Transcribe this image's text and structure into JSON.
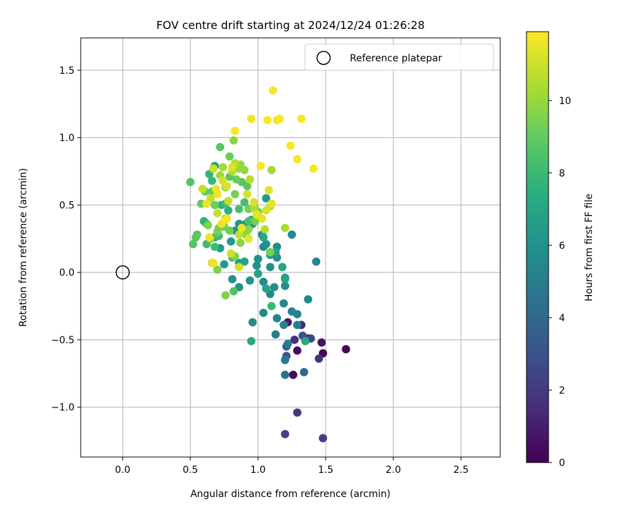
{
  "chart_data": {
    "type": "scatter",
    "title": "FOV centre drift starting at 2024/12/24 01:26:28",
    "xlabel": "Angular distance from reference (arcmin)",
    "ylabel": "Rotation from reference (arcmin)",
    "xlim": [
      -0.31,
      2.79
    ],
    "ylim": [
      -1.37,
      1.74
    ],
    "xticks": [
      0.0,
      0.5,
      1.0,
      1.5,
      2.0,
      2.5
    ],
    "xtick_labels": [
      "0.0",
      "0.5",
      "1.0",
      "1.5",
      "2.0",
      "2.5"
    ],
    "yticks": [
      -1.0,
      -0.5,
      0.0,
      0.5,
      1.0,
      1.5
    ],
    "ytick_labels": [
      "−1.0",
      "−0.5",
      "0.0",
      "0.5",
      "1.0",
      "1.5"
    ],
    "grid": true,
    "legend": {
      "placement": "upper right",
      "entries": [
        {
          "label": "Reference platepar",
          "marker": "open-circle"
        }
      ]
    },
    "reference_point": {
      "x": 0.0,
      "y": 0.0,
      "label": "Reference platepar"
    },
    "colorbar": {
      "label": "Hours from first FF file",
      "range": [
        0,
        11.9
      ],
      "ticks": [
        0,
        2,
        4,
        6,
        8,
        10
      ],
      "tick_labels": [
        "0",
        "2",
        "4",
        "6",
        "8",
        "10"
      ],
      "colormap": "viridis"
    },
    "points": [
      {
        "x": 1.26,
        "y": -0.76,
        "hours": 0.3
      },
      {
        "x": 1.29,
        "y": -0.58,
        "hours": 0.4
      },
      {
        "x": 1.48,
        "y": -0.6,
        "hours": 0.2
      },
      {
        "x": 1.65,
        "y": -0.57,
        "hours": 0.2
      },
      {
        "x": 1.47,
        "y": -0.52,
        "hours": 0.6
      },
      {
        "x": 1.37,
        "y": -0.49,
        "hours": 0.8
      },
      {
        "x": 1.22,
        "y": -0.37,
        "hours": 1.0
      },
      {
        "x": 1.32,
        "y": -0.39,
        "hours": 1.4
      },
      {
        "x": 1.27,
        "y": -0.5,
        "hours": 1.6
      },
      {
        "x": 1.45,
        "y": -0.64,
        "hours": 1.8
      },
      {
        "x": 1.29,
        "y": -1.04,
        "hours": 2.0
      },
      {
        "x": 1.48,
        "y": -1.23,
        "hours": 2.2
      },
      {
        "x": 1.2,
        "y": -1.2,
        "hours": 2.4
      },
      {
        "x": 1.39,
        "y": -0.49,
        "hours": 2.6
      },
      {
        "x": 1.33,
        "y": -0.47,
        "hours": 3.0
      },
      {
        "x": 1.21,
        "y": -0.62,
        "hours": 3.2
      },
      {
        "x": 1.21,
        "y": -0.55,
        "hours": 3.6
      },
      {
        "x": 1.34,
        "y": -0.74,
        "hours": 4.0
      },
      {
        "x": 1.2,
        "y": -0.76,
        "hours": 4.4
      },
      {
        "x": 1.2,
        "y": -0.65,
        "hours": 4.8
      },
      {
        "x": 1.22,
        "y": -0.53,
        "hours": 5.0
      },
      {
        "x": 1.13,
        "y": -0.46,
        "hours": 5.0
      },
      {
        "x": 1.19,
        "y": -0.39,
        "hours": 5.2
      },
      {
        "x": 1.29,
        "y": -0.39,
        "hours": 5.2
      },
      {
        "x": 1.25,
        "y": -0.29,
        "hours": 5.4
      },
      {
        "x": 1.29,
        "y": -0.31,
        "hours": 5.4
      },
      {
        "x": 1.14,
        "y": -0.34,
        "hours": 5.4
      },
      {
        "x": 1.19,
        "y": -0.23,
        "hours": 5.6
      },
      {
        "x": 1.04,
        "y": -0.3,
        "hours": 5.6
      },
      {
        "x": 0.96,
        "y": -0.37,
        "hours": 5.6
      },
      {
        "x": 1.37,
        "y": -0.2,
        "hours": 5.6
      },
      {
        "x": 1.43,
        "y": 0.08,
        "hours": 5.6
      },
      {
        "x": 1.25,
        "y": 0.28,
        "hours": 5.6
      },
      {
        "x": 1.09,
        "y": -0.16,
        "hours": 5.6
      },
      {
        "x": 1.12,
        "y": -0.11,
        "hours": 5.8
      },
      {
        "x": 1.2,
        "y": -0.1,
        "hours": 5.8
      },
      {
        "x": 1.2,
        "y": -0.04,
        "hours": 5.8
      },
      {
        "x": 1.04,
        "y": -0.07,
        "hours": 5.8
      },
      {
        "x": 1.14,
        "y": 0.19,
        "hours": 5.6
      },
      {
        "x": 1.04,
        "y": 0.19,
        "hours": 5.6
      },
      {
        "x": 1.0,
        "y": 0.1,
        "hours": 6.0
      },
      {
        "x": 0.99,
        "y": 0.05,
        "hours": 6.0
      },
      {
        "x": 0.94,
        "y": -0.06,
        "hours": 6.0
      },
      {
        "x": 0.86,
        "y": -0.11,
        "hours": 6.0
      },
      {
        "x": 0.81,
        "y": -0.05,
        "hours": 6.0
      },
      {
        "x": 1.09,
        "y": 0.04,
        "hours": 6.0
      },
      {
        "x": 1.09,
        "y": 0.13,
        "hours": 6.2
      },
      {
        "x": 1.14,
        "y": 0.11,
        "hours": 6.0
      },
      {
        "x": 1.06,
        "y": 0.21,
        "hours": 6.0
      },
      {
        "x": 1.03,
        "y": 0.28,
        "hours": 6.0
      },
      {
        "x": 0.96,
        "y": 0.36,
        "hours": 6.0
      },
      {
        "x": 0.91,
        "y": 0.36,
        "hours": 6.2
      },
      {
        "x": 0.86,
        "y": 0.36,
        "hours": 6.2
      },
      {
        "x": 0.83,
        "y": 0.31,
        "hours": 6.2
      },
      {
        "x": 0.8,
        "y": 0.23,
        "hours": 6.4
      },
      {
        "x": 1.06,
        "y": 0.55,
        "hours": 6.4
      },
      {
        "x": 0.86,
        "y": 0.07,
        "hours": 6.4
      },
      {
        "x": 0.75,
        "y": 0.06,
        "hours": 6.4
      },
      {
        "x": 0.72,
        "y": 0.18,
        "hours": 6.6
      },
      {
        "x": 0.68,
        "y": 0.79,
        "hours": 6.8
      },
      {
        "x": 1.0,
        "y": -0.01,
        "hours": 6.8
      },
      {
        "x": 0.9,
        "y": 0.08,
        "hours": 7.0
      },
      {
        "x": 1.06,
        "y": -0.12,
        "hours": 7.0
      },
      {
        "x": 1.2,
        "y": -0.05,
        "hours": 7.0
      },
      {
        "x": 1.18,
        "y": 0.04,
        "hours": 7.0
      },
      {
        "x": 1.13,
        "y": 0.15,
        "hours": 7.0
      },
      {
        "x": 1.04,
        "y": 0.26,
        "hours": 7.0
      },
      {
        "x": 0.95,
        "y": -0.51,
        "hours": 7.2
      },
      {
        "x": 1.35,
        "y": -0.51,
        "hours": 7.2
      },
      {
        "x": 0.68,
        "y": 0.26,
        "hours": 7.2
      },
      {
        "x": 0.62,
        "y": 0.36,
        "hours": 7.4
      },
      {
        "x": 0.6,
        "y": 0.38,
        "hours": 7.6
      },
      {
        "x": 0.73,
        "y": 0.5,
        "hours": 7.6
      },
      {
        "x": 0.78,
        "y": 0.46,
        "hours": 7.6
      },
      {
        "x": 0.95,
        "y": 0.39,
        "hours": 7.8
      },
      {
        "x": 0.64,
        "y": 0.73,
        "hours": 7.8
      },
      {
        "x": 0.66,
        "y": 0.68,
        "hours": 8.0
      },
      {
        "x": 1.1,
        "y": -0.25,
        "hours": 8.0
      },
      {
        "x": 0.76,
        "y": 0.51,
        "hours": 8.2
      },
      {
        "x": 0.71,
        "y": 0.27,
        "hours": 8.2
      },
      {
        "x": 0.68,
        "y": 0.19,
        "hours": 8.2
      },
      {
        "x": 0.62,
        "y": 0.21,
        "hours": 8.2
      },
      {
        "x": 0.86,
        "y": 0.47,
        "hours": 8.4
      },
      {
        "x": 0.9,
        "y": 0.52,
        "hours": 8.4
      },
      {
        "x": 0.93,
        "y": 0.38,
        "hours": 8.4
      },
      {
        "x": 0.81,
        "y": 0.11,
        "hours": 8.4
      },
      {
        "x": 0.82,
        "y": -0.14,
        "hours": 8.6
      },
      {
        "x": 0.5,
        "y": 0.67,
        "hours": 8.6
      },
      {
        "x": 0.55,
        "y": 0.28,
        "hours": 8.6
      },
      {
        "x": 0.52,
        "y": 0.21,
        "hours": 8.6
      },
      {
        "x": 0.54,
        "y": 0.26,
        "hours": 8.8
      },
      {
        "x": 0.72,
        "y": 0.93,
        "hours": 8.8
      },
      {
        "x": 0.88,
        "y": 0.67,
        "hours": 8.8
      },
      {
        "x": 0.92,
        "y": 0.64,
        "hours": 8.8
      },
      {
        "x": 0.79,
        "y": 0.71,
        "hours": 8.8
      },
      {
        "x": 0.66,
        "y": 0.6,
        "hours": 9.0
      },
      {
        "x": 0.61,
        "y": 0.6,
        "hours": 9.0
      },
      {
        "x": 0.58,
        "y": 0.51,
        "hours": 9.0
      },
      {
        "x": 0.68,
        "y": 0.5,
        "hours": 9.2
      },
      {
        "x": 0.79,
        "y": 0.86,
        "hours": 9.2
      },
      {
        "x": 0.84,
        "y": 0.69,
        "hours": 9.2
      },
      {
        "x": 0.76,
        "y": 0.4,
        "hours": 9.2
      },
      {
        "x": 0.79,
        "y": 0.31,
        "hours": 9.2
      },
      {
        "x": 0.83,
        "y": 0.58,
        "hours": 9.4
      },
      {
        "x": 0.93,
        "y": 0.47,
        "hours": 9.4
      },
      {
        "x": 0.98,
        "y": 0.47,
        "hours": 9.4
      },
      {
        "x": 1.0,
        "y": 0.45,
        "hours": 9.4
      },
      {
        "x": 0.98,
        "y": 0.38,
        "hours": 9.4
      },
      {
        "x": 1.09,
        "y": 0.15,
        "hours": 9.4
      },
      {
        "x": 0.75,
        "y": 0.34,
        "hours": 9.4
      },
      {
        "x": 0.71,
        "y": 0.33,
        "hours": 9.4
      },
      {
        "x": 0.7,
        "y": 0.3,
        "hours": 9.4
      },
      {
        "x": 0.65,
        "y": 0.25,
        "hours": 9.6
      },
      {
        "x": 0.63,
        "y": 0.35,
        "hours": 9.6
      },
      {
        "x": 0.76,
        "y": -0.17,
        "hours": 9.6
      },
      {
        "x": 0.7,
        "y": 0.02,
        "hours": 9.6
      },
      {
        "x": 0.83,
        "y": 0.12,
        "hours": 9.6
      },
      {
        "x": 0.87,
        "y": 0.22,
        "hours": 9.8
      },
      {
        "x": 0.91,
        "y": 0.28,
        "hours": 9.8
      },
      {
        "x": 0.93,
        "y": 0.32,
        "hours": 9.8
      },
      {
        "x": 0.82,
        "y": 0.98,
        "hours": 9.8
      },
      {
        "x": 0.87,
        "y": 0.8,
        "hours": 10.0
      },
      {
        "x": 0.86,
        "y": 0.77,
        "hours": 10.0
      },
      {
        "x": 0.9,
        "y": 0.76,
        "hours": 10.0
      },
      {
        "x": 0.74,
        "y": 0.78,
        "hours": 10.2
      },
      {
        "x": 0.72,
        "y": 0.72,
        "hours": 10.2
      },
      {
        "x": 0.76,
        "y": 0.63,
        "hours": 10.2
      },
      {
        "x": 1.1,
        "y": 0.76,
        "hours": 10.2
      },
      {
        "x": 1.2,
        "y": 0.33,
        "hours": 10.4
      },
      {
        "x": 0.97,
        "y": 0.48,
        "hours": 10.4
      },
      {
        "x": 1.0,
        "y": 0.42,
        "hours": 10.4
      },
      {
        "x": 1.05,
        "y": 0.32,
        "hours": 10.6
      },
      {
        "x": 1.09,
        "y": 0.49,
        "hours": 10.6
      },
      {
        "x": 0.94,
        "y": 0.69,
        "hours": 10.6
      },
      {
        "x": 0.83,
        "y": 0.81,
        "hours": 10.6
      },
      {
        "x": 0.81,
        "y": 0.75,
        "hours": 10.6
      },
      {
        "x": 0.78,
        "y": 0.53,
        "hours": 10.8
      },
      {
        "x": 0.86,
        "y": 0.28,
        "hours": 10.8
      },
      {
        "x": 0.7,
        "y": 0.44,
        "hours": 10.8
      },
      {
        "x": 0.65,
        "y": 0.55,
        "hours": 10.8
      },
      {
        "x": 0.59,
        "y": 0.62,
        "hours": 10.8
      },
      {
        "x": 0.8,
        "y": 0.14,
        "hours": 11.0
      },
      {
        "x": 0.86,
        "y": 0.04,
        "hours": 11.0
      },
      {
        "x": 0.66,
        "y": 0.07,
        "hours": 11.0
      },
      {
        "x": 0.67,
        "y": 0.77,
        "hours": 11.0
      },
      {
        "x": 0.74,
        "y": 0.68,
        "hours": 11.2
      },
      {
        "x": 0.77,
        "y": 0.64,
        "hours": 11.2
      },
      {
        "x": 0.81,
        "y": 0.78,
        "hours": 11.2
      },
      {
        "x": 0.92,
        "y": 0.58,
        "hours": 11.2
      },
      {
        "x": 0.97,
        "y": 0.52,
        "hours": 11.2
      },
      {
        "x": 1.06,
        "y": 0.46,
        "hours": 11.2
      },
      {
        "x": 1.08,
        "y": 0.61,
        "hours": 11.4
      },
      {
        "x": 1.1,
        "y": 0.51,
        "hours": 11.4
      },
      {
        "x": 1.03,
        "y": 0.4,
        "hours": 11.4
      },
      {
        "x": 0.99,
        "y": 0.43,
        "hours": 11.4
      },
      {
        "x": 0.93,
        "y": 0.25,
        "hours": 11.4
      },
      {
        "x": 0.88,
        "y": 0.33,
        "hours": 11.6
      },
      {
        "x": 0.77,
        "y": 0.4,
        "hours": 11.6
      },
      {
        "x": 0.73,
        "y": 0.36,
        "hours": 11.6
      },
      {
        "x": 0.7,
        "y": 0.58,
        "hours": 11.6
      },
      {
        "x": 0.69,
        "y": 0.62,
        "hours": 11.6
      },
      {
        "x": 0.62,
        "y": 0.51,
        "hours": 11.6
      },
      {
        "x": 0.64,
        "y": 0.26,
        "hours": 11.6
      },
      {
        "x": 0.67,
        "y": 0.07,
        "hours": 11.6
      },
      {
        "x": 0.95,
        "y": 1.14,
        "hours": 11.6
      },
      {
        "x": 1.07,
        "y": 1.13,
        "hours": 11.8
      },
      {
        "x": 1.14,
        "y": 1.13,
        "hours": 11.8
      },
      {
        "x": 1.16,
        "y": 1.14,
        "hours": 11.8
      },
      {
        "x": 1.11,
        "y": 1.35,
        "hours": 11.8
      },
      {
        "x": 1.24,
        "y": 0.94,
        "hours": 11.8
      },
      {
        "x": 1.29,
        "y": 0.84,
        "hours": 11.8
      },
      {
        "x": 1.41,
        "y": 0.77,
        "hours": 11.8
      },
      {
        "x": 1.32,
        "y": 1.14,
        "hours": 11.8
      },
      {
        "x": 1.02,
        "y": 0.79,
        "hours": 11.8
      },
      {
        "x": 0.83,
        "y": 1.05,
        "hours": 11.8
      },
      {
        "x": 0.76,
        "y": 0.39,
        "hours": 11.8
      }
    ]
  }
}
